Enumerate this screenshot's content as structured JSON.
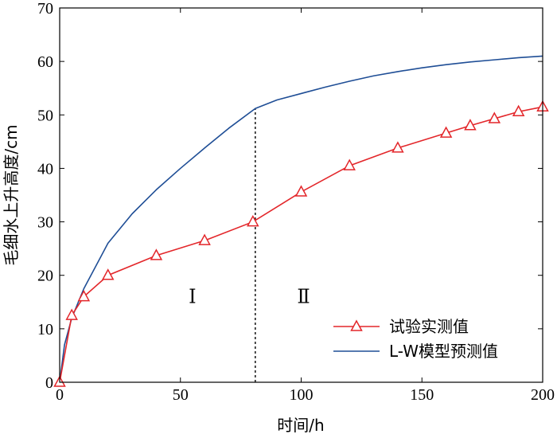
{
  "chart_data": {
    "type": "line",
    "xlabel": "时间/h",
    "ylabel": "毛细水上升高度/cm",
    "xlim": [
      0,
      200
    ],
    "ylim": [
      0,
      70
    ],
    "xticks": [
      0,
      50,
      100,
      150,
      200
    ],
    "yticks": [
      0,
      10,
      20,
      30,
      40,
      50,
      60,
      70
    ],
    "grid": false,
    "legend_position": "bottom-right",
    "divider_x": 81,
    "regions": [
      {
        "label": "Ⅰ",
        "x": 55,
        "y": 16
      },
      {
        "label": "Ⅱ",
        "x": 101,
        "y": 16
      }
    ],
    "series": [
      {
        "name": "试验实测值",
        "color": "#e3262a",
        "marker": "triangle",
        "x": [
          0,
          5,
          10,
          20,
          40,
          60,
          80,
          100,
          120,
          140,
          160,
          170,
          180,
          190,
          200
        ],
        "y": [
          0,
          12.5,
          16,
          20,
          23.7,
          26.5,
          30,
          35.6,
          40.5,
          43.8,
          46.6,
          48,
          49.3,
          50.6,
          51.5
        ]
      },
      {
        "name": "L-W模型预测值",
        "color": "#1f4e96",
        "marker": "none",
        "x": [
          0,
          2,
          5,
          10,
          20,
          30,
          40,
          50,
          60,
          70,
          81,
          90,
          100,
          110,
          120,
          130,
          140,
          150,
          160,
          170,
          180,
          190,
          200
        ],
        "y": [
          0,
          7,
          12,
          17.5,
          26,
          31.5,
          36,
          40,
          43.8,
          47.5,
          51.2,
          52.8,
          54,
          55.2,
          56.3,
          57.3,
          58.1,
          58.8,
          59.4,
          59.9,
          60.3,
          60.7,
          61
        ]
      }
    ]
  }
}
